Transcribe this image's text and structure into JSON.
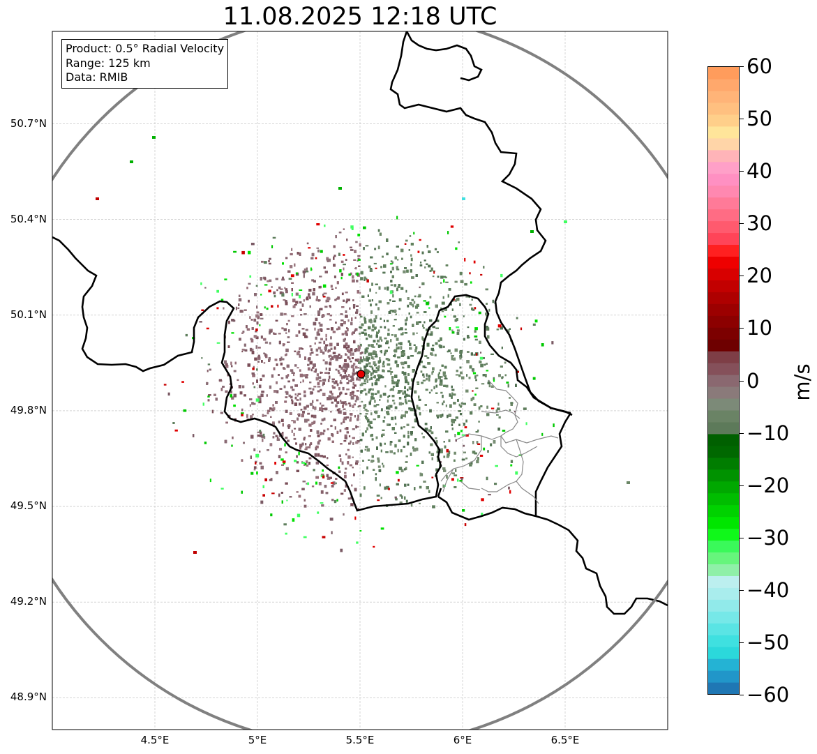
{
  "title": "11.08.2025 12:18 UTC",
  "info": {
    "product": "Product: 0.5° Radial Velocity",
    "range": "Range: 125 km",
    "data": "Data: RMIB"
  },
  "map_extent": {
    "lon_min": 4.0,
    "lon_max": 7.0,
    "lat_min": 48.8,
    "lat_max": 50.99
  },
  "radar_site": {
    "lon": 5.505,
    "lat": 49.915
  },
  "lat_ticks": [
    {
      "value": 50.7,
      "label": "50.7°N"
    },
    {
      "value": 50.4,
      "label": "50.4°N"
    },
    {
      "value": 50.1,
      "label": "50.1°N"
    },
    {
      "value": 49.8,
      "label": "49.8°N"
    },
    {
      "value": 49.5,
      "label": "49.5°N"
    },
    {
      "value": 49.2,
      "label": "49.2°N"
    },
    {
      "value": 48.9,
      "label": "48.9°N"
    }
  ],
  "lon_ticks": [
    {
      "value": 4.5,
      "label": "4.5°E"
    },
    {
      "value": 5.0,
      "label": "5°E"
    },
    {
      "value": 5.5,
      "label": "5.5°E"
    },
    {
      "value": 6.0,
      "label": "6°E"
    },
    {
      "value": 6.5,
      "label": "6.5°E"
    }
  ],
  "colorbar": {
    "unit": "m/s",
    "min": -60,
    "max": 60,
    "ticks": [
      {
        "value": 60,
        "label": "60"
      },
      {
        "value": 50,
        "label": "50"
      },
      {
        "value": 40,
        "label": "40"
      },
      {
        "value": 30,
        "label": "30"
      },
      {
        "value": 20,
        "label": "20"
      },
      {
        "value": 10,
        "label": "10"
      },
      {
        "value": 0,
        "label": "0"
      },
      {
        "value": -10,
        "label": "−10"
      },
      {
        "value": -20,
        "label": "−20"
      },
      {
        "value": -30,
        "label": "−30"
      },
      {
        "value": -40,
        "label": "−40"
      },
      {
        "value": -50,
        "label": "−50"
      },
      {
        "value": -60,
        "label": "−60"
      }
    ],
    "colors": [
      "#1f77b4",
      "#2196c9",
      "#24b3d4",
      "#2bd8db",
      "#3fe0e0",
      "#5ae4e4",
      "#76e8e8",
      "#91eaea",
      "#a9eded",
      "#bcefef",
      "#8ff0a8",
      "#66f57c",
      "#3af95a",
      "#10f81a",
      "#00e600",
      "#00d200",
      "#00bd00",
      "#00a800",
      "#009200",
      "#007d00",
      "#006800",
      "#006000",
      "#5d7a5a",
      "#6a8365",
      "#7c8a78",
      "#8a7a7a",
      "#8a6870",
      "#85505a",
      "#7e3e46",
      "#6e0000",
      "#7c0000",
      "#8c0000",
      "#9c0000",
      "#ae0000",
      "#c20000",
      "#d80000",
      "#ee0000",
      "#ff2020",
      "#ff4458",
      "#ff5a6e",
      "#ff6c84",
      "#ff7a98",
      "#ff88b0",
      "#ff90c2",
      "#ffa0c8",
      "#ffb4b8",
      "#ffd5a8",
      "#ffe59a",
      "#ffcf8a",
      "#ffc080",
      "#ffb478",
      "#ffa86c",
      "#ff9c5c"
    ]
  }
}
